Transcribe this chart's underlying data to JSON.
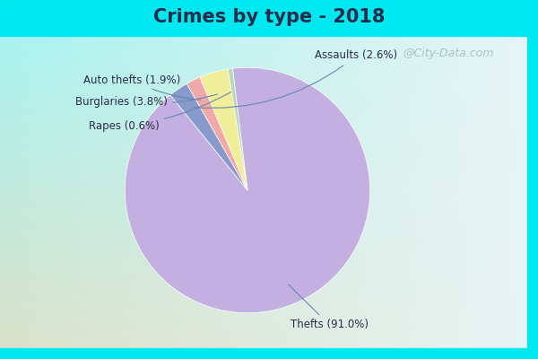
{
  "title": "Crimes by type - 2018",
  "slices": [
    {
      "label": "Thefts",
      "pct": 91.0,
      "color": "#c4b0e0"
    },
    {
      "label": "Assaults",
      "pct": 2.6,
      "color": "#8899cc"
    },
    {
      "label": "Auto thefts",
      "pct": 1.9,
      "color": "#f0a8a8"
    },
    {
      "label": "Burglaries",
      "pct": 3.8,
      "color": "#f0ee98"
    },
    {
      "label": "Rapes",
      "pct": 0.6,
      "color": "#b8d8b8"
    }
  ],
  "cyan_color": "#00e8f0",
  "bg_gradient_start": "#e8f8f8",
  "bg_gradient_end": "#c8e8c8",
  "title_fontsize": 15,
  "label_fontsize": 8.5,
  "watermark": "@City-Data.com",
  "startangle": 97,
  "title_color": "#2a2a4a"
}
